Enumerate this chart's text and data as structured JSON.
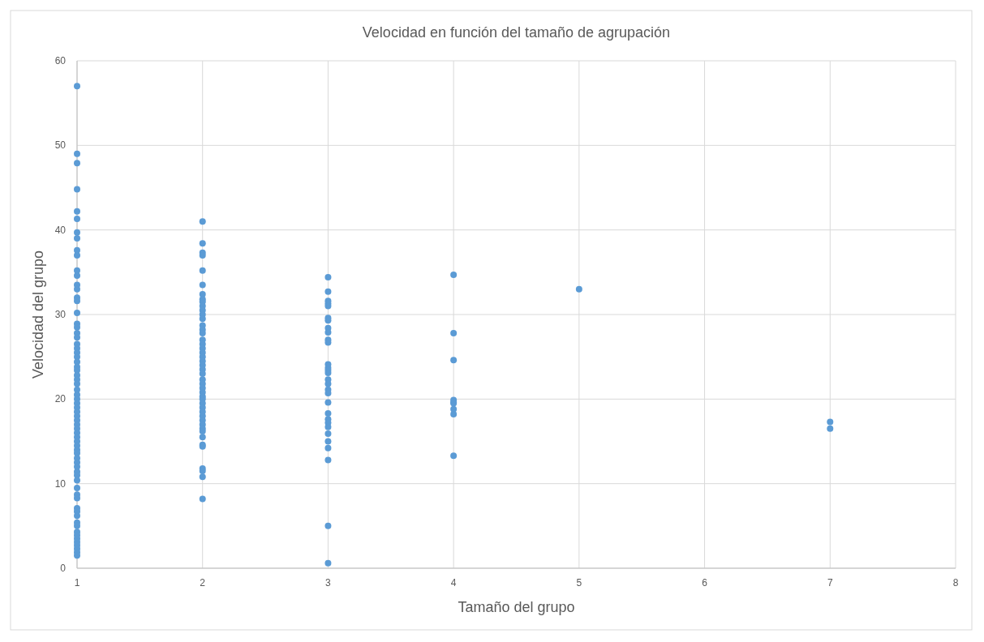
{
  "chart_data": {
    "type": "scatter",
    "title": "Velocidad en función del tamaño de agrupación",
    "xlabel": "Tamaño del grupo",
    "ylabel": "Velocidad del grupo",
    "marker": "circle",
    "grid": true,
    "xlim": [
      1,
      8
    ],
    "xticks": [
      1,
      2,
      3,
      4,
      5,
      6,
      7,
      8
    ],
    "ylim": [
      0,
      60
    ],
    "yticks": [
      0,
      10,
      20,
      30,
      40,
      50,
      60
    ],
    "series": [
      {
        "color": "#5b9bd5",
        "x": [
          1,
          1,
          1,
          1,
          1,
          1,
          1,
          1,
          1,
          1,
          1,
          1,
          1,
          1,
          1,
          1,
          1,
          1,
          1,
          1,
          1,
          1,
          1,
          1,
          1,
          1,
          1,
          1,
          1,
          1,
          1,
          1,
          1,
          1,
          1,
          1,
          1,
          1,
          1,
          1,
          1,
          1,
          1,
          1,
          1,
          1,
          1,
          1,
          1,
          1,
          1,
          1,
          1,
          1,
          1,
          1,
          1,
          1,
          1,
          1,
          1,
          1,
          1,
          1,
          1,
          1,
          1,
          1,
          1,
          2,
          2,
          2,
          2,
          2,
          2,
          2,
          2,
          2,
          2,
          2,
          2,
          2,
          2,
          2,
          2,
          2,
          2,
          2,
          2,
          2,
          2,
          2,
          2,
          2,
          2,
          2,
          2,
          2,
          2,
          2,
          2,
          2,
          2,
          2,
          2,
          2,
          2,
          2,
          2,
          2,
          2,
          2,
          2,
          2,
          2,
          3,
          3,
          3,
          3,
          3,
          3,
          3,
          3,
          3,
          3,
          3,
          3,
          3,
          3,
          3,
          3,
          3,
          3,
          3,
          3,
          3,
          3,
          3,
          3,
          3,
          3,
          3,
          3,
          3,
          3,
          4,
          4,
          4,
          4,
          4,
          4,
          4,
          4,
          4,
          5,
          7,
          7
        ],
        "values": [
          57,
          49,
          47.9,
          44.8,
          42.2,
          41.3,
          39.7,
          39,
          37.6,
          37,
          35.2,
          34.6,
          33.5,
          33,
          32,
          31.6,
          30.2,
          28.9,
          28.5,
          27.8,
          27.3,
          26.5,
          26,
          25.5,
          25,
          24.4,
          23.8,
          23.4,
          22.8,
          22.3,
          21.8,
          21.1,
          20.5,
          20,
          19.5,
          19,
          18.5,
          18,
          17.5,
          17,
          16.5,
          16,
          15.5,
          15,
          14.5,
          14,
          13.6,
          13,
          12.5,
          12,
          11.4,
          11,
          10.4,
          9.5,
          8.7,
          8.3,
          7.1,
          6.7,
          6.2,
          5.4,
          5,
          4.3,
          3.9,
          3.5,
          3.1,
          2.7,
          2.3,
          1.9,
          1.5,
          41,
          38.4,
          37.3,
          37,
          35.2,
          33.5,
          32.4,
          31.8,
          31.5,
          31,
          30.5,
          30,
          29.5,
          28.7,
          28.2,
          27.8,
          27,
          26.5,
          26,
          25.5,
          25,
          24.5,
          24,
          23.5,
          23,
          22.3,
          21.8,
          21.3,
          20.8,
          20.3,
          20,
          19.5,
          19,
          18.5,
          18,
          17.5,
          17,
          16.5,
          16.2,
          15.5,
          14.6,
          14.4,
          11.8,
          11.5,
          10.8,
          8.2,
          34.4,
          32.7,
          31.6,
          31.3,
          31,
          29.6,
          29.3,
          28.4,
          27.9,
          27,
          26.7,
          24.1,
          23.7,
          23.4,
          23.1,
          22.3,
          21.8,
          21.1,
          20.7,
          19.6,
          18.3,
          17.6,
          17.2,
          16.7,
          15.9,
          15,
          14.2,
          12.8,
          5,
          0.6,
          34.7,
          27.8,
          24.6,
          19.9,
          19.6,
          19.5,
          18.8,
          18.2,
          13.3,
          33,
          17.3,
          16.5
        ]
      }
    ]
  }
}
